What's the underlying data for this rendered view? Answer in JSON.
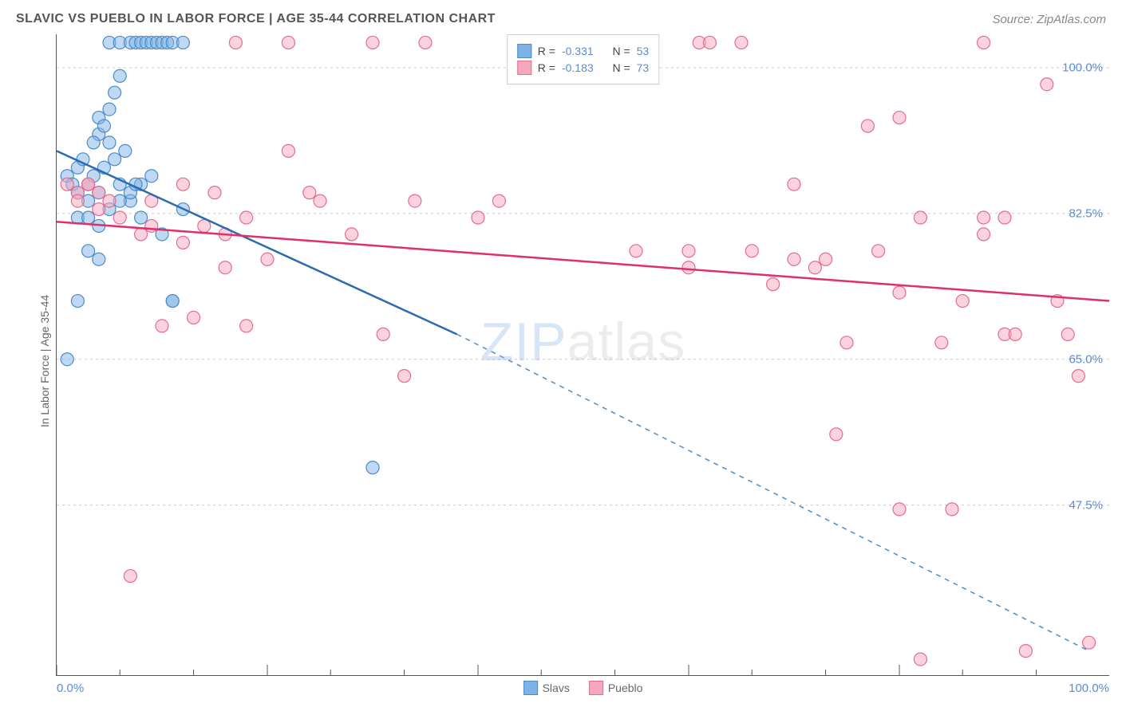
{
  "title": "SLAVIC VS PUEBLO IN LABOR FORCE | AGE 35-44 CORRELATION CHART",
  "source": "Source: ZipAtlas.com",
  "ylabel": "In Labor Force | Age 35-44",
  "watermark_a": "ZIP",
  "watermark_b": "atlas",
  "chart": {
    "type": "scatter",
    "xlim": [
      0,
      100
    ],
    "ylim": [
      27,
      104
    ],
    "y_ticks": [
      47.5,
      65.0,
      82.5,
      100.0
    ],
    "y_tick_labels": [
      "47.5%",
      "65.0%",
      "82.5%",
      "100.0%"
    ],
    "x_ticks": [
      0,
      20,
      40,
      60,
      80,
      100
    ],
    "x_tick_labels": [
      "0.0%",
      "100.0%"
    ],
    "x_minor_ticks": [
      6,
      13,
      20,
      26,
      33,
      40,
      46,
      53,
      60,
      66,
      73,
      80,
      86,
      93
    ],
    "grid_color": "#cccccc",
    "background_color": "#ffffff",
    "point_radius": 8,
    "point_opacity": 0.5,
    "title_fontsize": 16,
    "source_fontsize": 15,
    "label_fontsize": 14,
    "tick_fontsize": 15,
    "legend_fontsize": 14,
    "series": [
      {
        "name": "Slavs",
        "color": "#7fb3e8",
        "stroke": "#4a8cc9",
        "line_color": "#2b6cb0",
        "R": "-0.331",
        "N": "53",
        "points": [
          [
            1,
            87
          ],
          [
            1.5,
            86
          ],
          [
            2,
            88
          ],
          [
            2,
            85
          ],
          [
            2.5,
            89
          ],
          [
            3,
            86
          ],
          [
            3,
            84
          ],
          [
            3.5,
            87
          ],
          [
            4,
            92
          ],
          [
            4,
            94
          ],
          [
            4,
            85
          ],
          [
            4.5,
            88
          ],
          [
            5,
            91
          ],
          [
            5,
            95
          ],
          [
            5,
            103
          ],
          [
            5.5,
            97
          ],
          [
            6,
            103
          ],
          [
            6,
            86
          ],
          [
            6,
            99
          ],
          [
            7,
            103
          ],
          [
            7,
            84
          ],
          [
            7.5,
            103
          ],
          [
            8,
            103
          ],
          [
            8,
            82
          ],
          [
            8.5,
            103
          ],
          [
            9,
            87
          ],
          [
            9,
            103
          ],
          [
            9.5,
            103
          ],
          [
            10,
            103
          ],
          [
            10,
            80
          ],
          [
            10.5,
            103
          ],
          [
            11,
            72
          ],
          [
            11,
            103
          ],
          [
            12,
            103
          ],
          [
            12,
            83
          ],
          [
            1,
            65
          ],
          [
            2,
            82
          ],
          [
            3,
            82
          ],
          [
            4,
            81
          ],
          [
            5,
            83
          ],
          [
            6,
            84
          ],
          [
            7,
            85
          ],
          [
            8,
            86
          ],
          [
            2,
            72
          ],
          [
            3,
            78
          ],
          [
            4,
            77
          ],
          [
            11,
            72
          ],
          [
            30,
            52
          ],
          [
            3.5,
            91
          ],
          [
            4.5,
            93
          ],
          [
            5.5,
            89
          ],
          [
            6.5,
            90
          ],
          [
            7.5,
            86
          ]
        ],
        "trend": {
          "x1": 0,
          "y1": 90,
          "x2": 38,
          "y2": 68,
          "dash_x2": 98,
          "dash_y2": 30
        }
      },
      {
        "name": "Pueblo",
        "color": "#f5a8bd",
        "stroke": "#e56b8f",
        "line_color": "#e02f6b",
        "R": "-0.183",
        "N": "73",
        "points": [
          [
            1,
            86
          ],
          [
            2,
            85
          ],
          [
            3,
            86
          ],
          [
            4,
            85
          ],
          [
            7,
            39
          ],
          [
            8,
            80
          ],
          [
            9,
            84
          ],
          [
            10,
            69
          ],
          [
            12,
            86
          ],
          [
            13,
            70
          ],
          [
            14,
            81
          ],
          [
            15,
            85
          ],
          [
            16,
            76
          ],
          [
            17,
            103
          ],
          [
            18,
            69
          ],
          [
            20,
            77
          ],
          [
            22,
            90
          ],
          [
            22,
            103
          ],
          [
            24,
            85
          ],
          [
            25,
            84
          ],
          [
            30,
            103
          ],
          [
            31,
            68
          ],
          [
            33,
            63
          ],
          [
            34,
            84
          ],
          [
            35,
            103
          ],
          [
            40,
            82
          ],
          [
            42,
            84
          ],
          [
            55,
            78
          ],
          [
            60,
            78
          ],
          [
            60,
            76
          ],
          [
            61,
            103
          ],
          [
            62,
            103
          ],
          [
            65,
            103
          ],
          [
            66,
            78
          ],
          [
            68,
            74
          ],
          [
            70,
            86
          ],
          [
            73,
            77
          ],
          [
            74,
            56
          ],
          [
            75,
            67
          ],
          [
            77,
            93
          ],
          [
            78,
            78
          ],
          [
            80,
            47
          ],
          [
            80,
            73
          ],
          [
            80,
            94
          ],
          [
            82,
            82
          ],
          [
            82,
            29
          ],
          [
            84,
            67
          ],
          [
            85,
            47
          ],
          [
            86,
            72
          ],
          [
            88,
            103
          ],
          [
            88,
            82
          ],
          [
            90,
            68
          ],
          [
            91,
            68
          ],
          [
            92,
            30
          ],
          [
            94,
            98
          ],
          [
            95,
            72
          ],
          [
            96,
            68
          ],
          [
            97,
            63
          ],
          [
            98,
            31
          ],
          [
            3,
            86
          ],
          [
            5,
            84
          ],
          [
            2,
            84
          ],
          [
            4,
            83
          ],
          [
            28,
            80
          ],
          [
            18,
            82
          ],
          [
            12,
            79
          ],
          [
            16,
            80
          ],
          [
            9,
            81
          ],
          [
            6,
            82
          ],
          [
            70,
            77
          ],
          [
            72,
            76
          ],
          [
            88,
            80
          ],
          [
            90,
            82
          ]
        ],
        "trend": {
          "x1": 0,
          "y1": 81.5,
          "x2": 100,
          "y2": 72
        }
      }
    ],
    "stats_labels": {
      "r_prefix": "R = ",
      "n_prefix": "N = "
    }
  }
}
